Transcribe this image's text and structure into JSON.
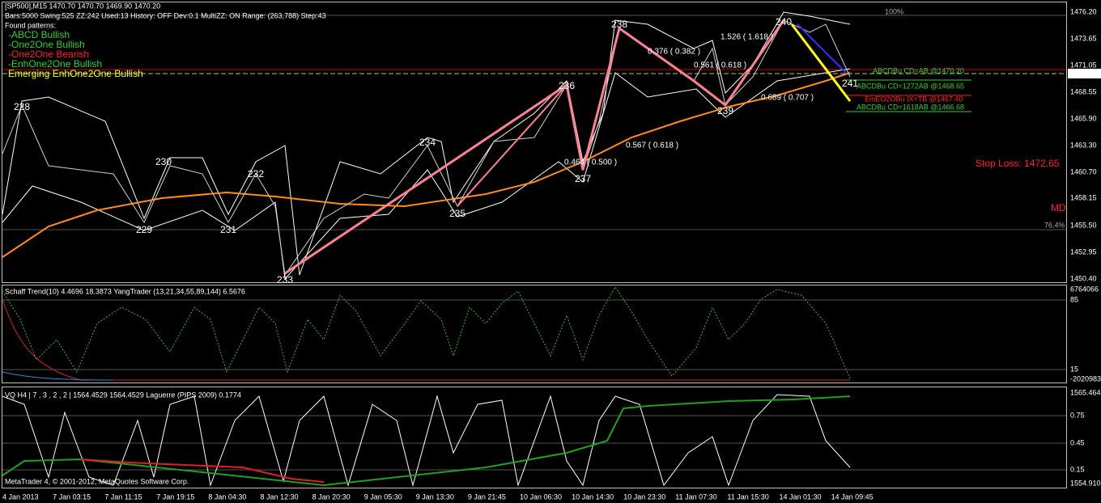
{
  "header": {
    "symbol_line": "[SP500],M15  1470.70 1470.70 1469.90 1470.20",
    "settings_line": "Bars:5000  Swing:525  ZZ:242  Used:13  History: OFF Dev:0.1  MultiZZ: ON  Range: (263,788)  Step:43",
    "found": "Found patterns:",
    "patterns": [
      "-ABCD Bullish",
      "-One2One Bullish",
      "-One2One Bearish",
      "-EnhOne2One Bullish",
      "Emerging EnhOne2One Bullish"
    ],
    "pct_top": "100%",
    "pct_mid": "76.4%"
  },
  "price_axis": [
    "1476.20",
    "1473.65",
    "1471.05",
    "1470.20",
    "1468.55",
    "1465.90",
    "1463.30",
    "1460.70",
    "1458.15",
    "1455.50",
    "1452.95",
    "1450.40"
  ],
  "zigzag": [
    "228",
    "229",
    "230",
    "231",
    "232",
    "233",
    "234",
    "235",
    "236",
    "237",
    "238",
    "239",
    "240",
    "241"
  ],
  "ratios": [
    "0.376 ( 0.382 )",
    "1.526 ( 1.618 )",
    "0.561 ( 0.618 )",
    "0.689 ( 0.707 )",
    "0.464 ( 0.500 )",
    "0.567 ( 0.618 )"
  ],
  "targets": [
    "ABCDBu CD=AB  @1470.20",
    "ABCDBu CD=1272AB  @1468.65",
    "EmEO2OBu IX=TB  @1467.40",
    "ABCDBu CD=1618AB  @1466.68"
  ],
  "stop_loss": "Stop Loss: 1472.65",
  "md": "MD",
  "panel2": {
    "title": "Schaff Trend(10) 4.4696 18.3873  YangTrader (13,21,34,55,89,144) 6.5676",
    "axis": [
      "6764066",
      "85",
      "15",
      "-2020983"
    ]
  },
  "panel3": {
    "title": "VQ H4 | 7 , 3 , 2 , 2 | 1564.4529 1564.4529  Laguerre (PIPS 2009) 0.1774",
    "axis": [
      "1565.464",
      "0.75",
      "0.45",
      "0.15",
      "1554.910"
    ]
  },
  "time_axis": [
    "4 Jan 2013",
    "7 Jan 03:15",
    "7 Jan 11:15",
    "7 Jan 19:15",
    "8 Jan 04:30",
    "8 Jan 12:30",
    "8 Jan 20:30",
    "9 Jan 05:30",
    "9 Jan 13:30",
    "9 Jan 21:45",
    "10 Jan 06:30",
    "10 Jan 14:30",
    "10 Jan 23:30",
    "11 Jan 07:30",
    "11 Jan 15:30",
    "14 Jan 01:30",
    "14 Jan 09:45"
  ],
  "copyright": "MetaTrader 4, © 2001-2012, MetaQuotes Software Corp."
}
